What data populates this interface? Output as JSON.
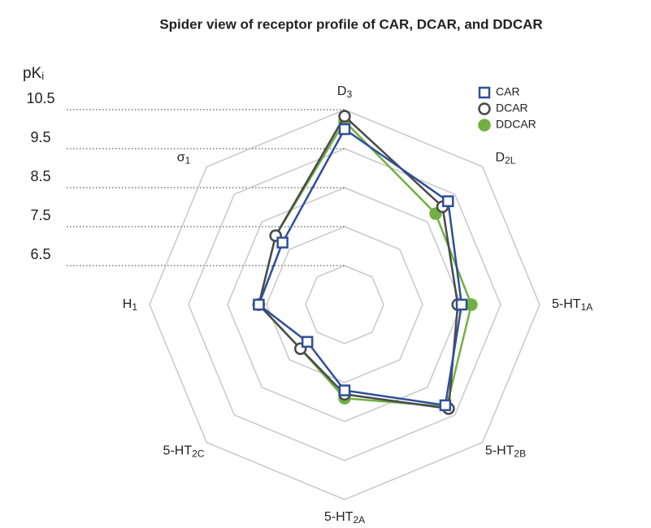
{
  "chart_data": {
    "type": "radar",
    "title": "Spider view of receptor profile of CAR, DCAR, and DDCAR",
    "y_label": {
      "base": "pK",
      "sub": "i"
    },
    "categories": [
      {
        "base": "D",
        "sub": "3"
      },
      {
        "base": "D",
        "sub": "2L"
      },
      {
        "base": "5-HT",
        "sub": "1A"
      },
      {
        "base": "5-HT",
        "sub": "2B"
      },
      {
        "base": "5-HT",
        "sub": "2A"
      },
      {
        "base": "5-HT",
        "sub": "2C"
      },
      {
        "base": "H",
        "sub": "1"
      },
      {
        "base": "σ",
        "sub": "1"
      }
    ],
    "ylim": [
      5.5,
      10.5
    ],
    "yticks": [
      6.5,
      7.5,
      8.5,
      9.5,
      10.5
    ],
    "legend": "upper right",
    "series": [
      {
        "name": "CAR",
        "color": "#2f4f9c",
        "marker": "square",
        "values": [
          10.0,
          9.25,
          8.5,
          9.15,
          7.7,
          6.85,
          7.7,
          7.75
        ]
      },
      {
        "name": "DCAR",
        "color": "#4a4a4a",
        "marker": "circle",
        "values": [
          10.33,
          9.05,
          8.4,
          9.27,
          7.8,
          7.1,
          7.7,
          8.0
        ]
      },
      {
        "name": "DDCAR",
        "color": "#72b043",
        "marker": "filled-circle",
        "values": [
          10.2,
          8.8,
          8.75,
          9.2,
          7.9,
          7.1,
          7.7,
          8.0
        ]
      }
    ]
  }
}
